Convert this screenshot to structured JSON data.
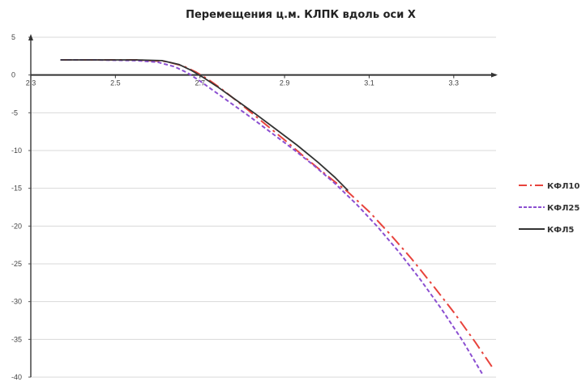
{
  "chart_data": {
    "type": "line",
    "title": "Перемещения ц.м. КЛПК вдоль оси X",
    "xlabel": "",
    "ylabel": "",
    "xlim": [
      2.3,
      3.4
    ],
    "ylim": [
      -40,
      5
    ],
    "x_ticks": [
      2.3,
      2.5,
      2.7,
      2.9,
      3.1,
      3.3
    ],
    "x_tick_labels": [
      "2.3",
      "2.5",
      "2.7",
      "2.9",
      "3.1",
      "3.3"
    ],
    "y_ticks": [
      5,
      0,
      -5,
      -10,
      -15,
      -20,
      -25,
      -30,
      -35,
      -40
    ],
    "y_tick_labels": [
      "5",
      "0",
      "-5",
      "-10",
      "-15",
      "-20",
      "-25",
      "-30",
      "-35",
      "-40"
    ],
    "grid": "horizontal",
    "legend_position": "right",
    "series": [
      {
        "name": "КФЛ10",
        "color": "#e8433c",
        "dash": "dash-dot",
        "x": [
          2.37,
          2.45,
          2.55,
          2.62,
          2.66,
          2.69,
          2.72,
          2.75,
          2.8,
          2.85,
          2.9,
          2.95,
          3.0,
          3.05,
          3.1,
          3.15,
          3.2,
          3.25,
          3.3,
          3.35,
          3.39
        ],
        "y": [
          2,
          2,
          2,
          1.8,
          1.2,
          0.4,
          -0.6,
          -1.8,
          -4.0,
          -6.3,
          -8.6,
          -11.0,
          -13.3,
          -15.5,
          -18.1,
          -21.1,
          -24.3,
          -27.8,
          -31.4,
          -35.3,
          -38.6
        ]
      },
      {
        "name": "КФЛ25",
        "color": "#8b4fd1",
        "dash": "dash",
        "x": [
          2.37,
          2.45,
          2.55,
          2.6,
          2.64,
          2.67,
          2.7,
          2.73,
          2.77,
          2.82,
          2.87,
          2.92,
          2.97,
          3.02,
          3.07,
          3.12,
          3.17,
          3.22,
          3.27,
          3.32,
          3.37
        ],
        "y": [
          2,
          2,
          1.9,
          1.7,
          1.1,
          0.3,
          -0.8,
          -2.0,
          -3.6,
          -5.6,
          -7.7,
          -9.8,
          -12.0,
          -14.4,
          -17.1,
          -20.1,
          -23.4,
          -27.0,
          -30.9,
          -35.1,
          -39.8
        ]
      },
      {
        "name": "КФЛ5",
        "color": "#333333",
        "dash": "solid",
        "x": [
          2.37,
          2.45,
          2.55,
          2.61,
          2.65,
          2.68,
          2.71,
          2.74,
          2.78,
          2.83,
          2.88,
          2.93,
          2.98,
          3.02,
          3.05
        ],
        "y": [
          2,
          2,
          2,
          1.9,
          1.4,
          0.6,
          -0.4,
          -1.5,
          -3.1,
          -5.1,
          -7.2,
          -9.3,
          -11.6,
          -13.6,
          -15.3
        ]
      }
    ]
  }
}
